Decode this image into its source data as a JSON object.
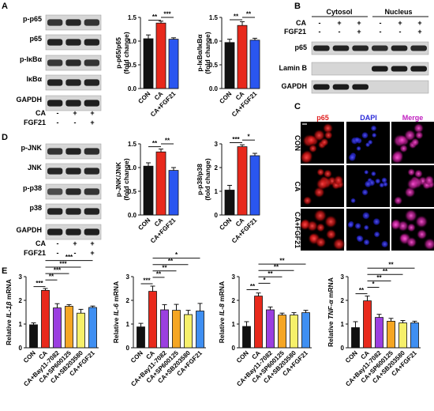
{
  "colors": {
    "black": "#111111",
    "red": "#e8291c",
    "blue": "#2a56f0",
    "purple": "#9b3fe0",
    "orange": "#f5a623",
    "yellow": "#f6f06a",
    "lightblue": "#3f8ff2"
  },
  "panels": {
    "A": {
      "letter": "A",
      "blot_labels": [
        "p-p65",
        "p65",
        "p-IκBα",
        "IκBα",
        "GAPDH"
      ],
      "conditions": [
        {
          "label": "CA",
          "marks": [
            "-",
            "+",
            "+"
          ]
        },
        {
          "label": "FGF21",
          "marks": [
            "-",
            "-",
            "+"
          ]
        }
      ]
    },
    "B": {
      "letter": "B",
      "groups": [
        "Cytosol",
        "Nucleus"
      ],
      "conditions": [
        {
          "label": "CA",
          "marks": [
            "-",
            "+",
            "+",
            "-",
            "+",
            "+"
          ]
        },
        {
          "label": "FGF21",
          "marks": [
            "-",
            "-",
            "+",
            "-",
            "-",
            "+"
          ]
        }
      ],
      "blot_labels": [
        "p65",
        "Lamin B",
        "GAPDH"
      ]
    },
    "C": {
      "letter": "C",
      "columns": [
        "p65",
        "DAPI",
        "Merge"
      ],
      "rows": [
        "CON",
        "CA",
        "CA+FGF21"
      ],
      "column_colors": [
        "#e02020",
        "#2b2bd8",
        "#c020c0"
      ]
    },
    "D": {
      "letter": "D",
      "blot_labels": [
        "p-JNK",
        "JNK",
        "p-p38",
        "p38",
        "GAPDH"
      ],
      "conditions": [
        {
          "label": "CA",
          "marks": [
            "-",
            "+",
            "+"
          ]
        },
        {
          "label": "FGF21",
          "marks": [
            "-",
            "-",
            "+"
          ]
        }
      ]
    },
    "E": {
      "letter": "E"
    }
  },
  "chart_data": [
    {
      "type": "bar",
      "panel": "A",
      "ylabel_lines": [
        "p-p65/p65",
        "(fold change)"
      ],
      "categories": [
        "CON",
        "CA",
        "CA+FGF21"
      ],
      "values": [
        1.05,
        1.38,
        1.04
      ],
      "errors": [
        0.08,
        0.04,
        0.03
      ],
      "ylim": [
        0,
        1.5
      ],
      "yticks": [
        "0.0",
        "0.5",
        "1.0",
        "1.5"
      ],
      "colors": [
        "#111111",
        "#e8291c",
        "#2a56f0"
      ],
      "significance": [
        {
          "from": 0,
          "to": 1,
          "label": "**",
          "y": 1.44
        },
        {
          "from": 1,
          "to": 2,
          "label": "***",
          "y": 1.5
        }
      ]
    },
    {
      "type": "bar",
      "panel": "A",
      "ylabel_lines": [
        "p-IκBα/IκBα",
        "(fold change)"
      ],
      "categories": [
        "CON",
        "CA",
        "CA+FGF21"
      ],
      "values": [
        0.97,
        1.33,
        1.02
      ],
      "errors": [
        0.07,
        0.08,
        0.04
      ],
      "ylim": [
        0,
        1.5
      ],
      "yticks": [
        "0.0",
        "0.5",
        "1.0",
        "1.5"
      ],
      "colors": [
        "#111111",
        "#e8291c",
        "#2a56f0"
      ],
      "significance": [
        {
          "from": 0,
          "to": 1,
          "label": "**",
          "y": 1.45
        },
        {
          "from": 1,
          "to": 2,
          "label": "**",
          "y": 1.5
        }
      ]
    },
    {
      "type": "bar",
      "panel": "D",
      "ylabel_lines": [
        "p-JNK/JNK",
        "(fold change)"
      ],
      "categories": [
        "CON",
        "CA",
        "CA+FGF21"
      ],
      "values": [
        1.03,
        1.33,
        0.94
      ],
      "errors": [
        0.07,
        0.06,
        0.06
      ],
      "ylim": [
        0,
        1.5
      ],
      "yticks": [
        "0.0",
        "0.5",
        "1.0",
        "1.5"
      ],
      "colors": [
        "#111111",
        "#e8291c",
        "#2a56f0"
      ],
      "significance": [
        {
          "from": 0,
          "to": 1,
          "label": "**",
          "y": 1.44
        },
        {
          "from": 1,
          "to": 2,
          "label": "**",
          "y": 1.5
        }
      ]
    },
    {
      "type": "bar",
      "panel": "D",
      "ylabel_lines": [
        "p-p38/p38",
        "(fold change)"
      ],
      "categories": [
        "CON",
        "CA",
        "CA+FGF21"
      ],
      "values": [
        1.05,
        2.88,
        2.5
      ],
      "errors": [
        0.2,
        0.08,
        0.1
      ],
      "ylim": [
        0,
        3
      ],
      "yticks": [
        "0",
        "1",
        "2",
        "3"
      ],
      "colors": [
        "#111111",
        "#e8291c",
        "#2a56f0"
      ],
      "significance": [
        {
          "from": 0,
          "to": 1,
          "label": "***",
          "y": 3.05
        },
        {
          "from": 1,
          "to": 2,
          "label": "*",
          "y": 3.16
        }
      ]
    },
    {
      "type": "bar",
      "panel": "E",
      "ylabel_prefix": "Relative ",
      "ylabel_gene": "IL-1β",
      "ylabel_suffix": " mRNA",
      "categories": [
        "CON",
        "CA",
        "CA+Bay11-7082",
        "CA+SP600125",
        "CA+SB203580",
        "CA+FGF21"
      ],
      "values": [
        0.97,
        2.42,
        1.68,
        1.75,
        1.46,
        1.7
      ],
      "errors": [
        0.08,
        0.08,
        0.18,
        0.07,
        0.16,
        0.06
      ],
      "ylim": [
        0,
        3
      ],
      "yticks": [
        "0",
        "1",
        "2",
        "3"
      ],
      "colors": [
        "#111111",
        "#e8291c",
        "#9b3fe0",
        "#f5a623",
        "#f6f06a",
        "#3f8ff2"
      ],
      "significance": [
        {
          "from": 0,
          "to": 1,
          "label": "***",
          "y": 2.58
        },
        {
          "from": 1,
          "to": 2,
          "label": "**",
          "y": 2.86
        },
        {
          "from": 1,
          "to": 3,
          "label": "***",
          "y": 3.13
        },
        {
          "from": 1,
          "to": 4,
          "label": "***",
          "y": 3.4
        },
        {
          "from": 1,
          "to": 5,
          "label": "***",
          "y": 3.68
        }
      ]
    },
    {
      "type": "bar",
      "panel": "E",
      "ylabel_prefix": "Relative ",
      "ylabel_gene": "IL-6",
      "ylabel_suffix": " mRNA",
      "categories": [
        "CON",
        "CA",
        "CA+Bay11-7082",
        "CA+SP600125",
        "CA+SB203580",
        "CA+FGF21"
      ],
      "values": [
        0.88,
        2.38,
        1.6,
        1.58,
        1.4,
        1.55
      ],
      "errors": [
        0.15,
        0.22,
        0.22,
        0.25,
        0.18,
        0.32
      ],
      "ylim": [
        0,
        3
      ],
      "yticks": [
        "0",
        "1",
        "2",
        "3"
      ],
      "colors": [
        "#111111",
        "#e8291c",
        "#9b3fe0",
        "#f5a623",
        "#f6f06a",
        "#3f8ff2"
      ],
      "significance": [
        {
          "from": 0,
          "to": 1,
          "label": "***",
          "y": 2.7
        },
        {
          "from": 1,
          "to": 2,
          "label": "**",
          "y": 2.97
        },
        {
          "from": 1,
          "to": 3,
          "label": "**",
          "y": 3.24
        },
        {
          "from": 1,
          "to": 4,
          "label": "**",
          "y": 3.51
        },
        {
          "from": 1,
          "to": 5,
          "label": "*",
          "y": 3.78
        }
      ]
    },
    {
      "type": "bar",
      "panel": "E",
      "ylabel_prefix": "Relative ",
      "ylabel_gene": "IL-8",
      "ylabel_suffix": " mRNA",
      "categories": [
        "CON",
        "CA",
        "CA+Bay11-7082",
        "CA+SP600125",
        "CA+SB203580",
        "CA+FGF21"
      ],
      "values": [
        0.9,
        2.18,
        1.6,
        1.38,
        1.38,
        1.48
      ],
      "errors": [
        0.2,
        0.13,
        0.12,
        0.08,
        0.1,
        0.1
      ],
      "ylim": [
        0,
        3
      ],
      "yticks": [
        "0",
        "1",
        "2",
        "3"
      ],
      "colors": [
        "#111111",
        "#e8291c",
        "#9b3fe0",
        "#f5a623",
        "#f6f06a",
        "#3f8ff2"
      ],
      "significance": [
        {
          "from": 0,
          "to": 1,
          "label": "**",
          "y": 2.45
        },
        {
          "from": 1,
          "to": 2,
          "label": "*",
          "y": 2.72
        },
        {
          "from": 1,
          "to": 3,
          "label": "**",
          "y": 2.99
        },
        {
          "from": 1,
          "to": 4,
          "label": "**",
          "y": 3.26
        },
        {
          "from": 1,
          "to": 5,
          "label": "**",
          "y": 3.53
        }
      ]
    },
    {
      "type": "bar",
      "panel": "E",
      "ylabel_prefix": "Relative ",
      "ylabel_gene": "TNF-α",
      "ylabel_suffix": " mRNA",
      "categories": [
        "CON",
        "CA",
        "CA+Bay11-7082",
        "CA+SP600125",
        "CA+SB203580",
        "CA+FGF21"
      ],
      "values": [
        0.85,
        1.98,
        1.28,
        1.12,
        1.05,
        1.05
      ],
      "errors": [
        0.25,
        0.2,
        0.13,
        0.12,
        0.1,
        0.07
      ],
      "ylim": [
        0,
        3
      ],
      "yticks": [
        "0",
        "1",
        "2",
        "3"
      ],
      "colors": [
        "#111111",
        "#e8291c",
        "#9b3fe0",
        "#f5a623",
        "#f6f06a",
        "#3f8ff2"
      ],
      "significance": [
        {
          "from": 0,
          "to": 1,
          "label": "**",
          "y": 2.28
        },
        {
          "from": 1,
          "to": 2,
          "label": "*",
          "y": 2.55
        },
        {
          "from": 1,
          "to": 3,
          "label": "**",
          "y": 2.82
        },
        {
          "from": 1,
          "to": 4,
          "label": "**",
          "y": 3.09
        },
        {
          "from": 1,
          "to": 5,
          "label": "**",
          "y": 3.36
        }
      ]
    }
  ]
}
